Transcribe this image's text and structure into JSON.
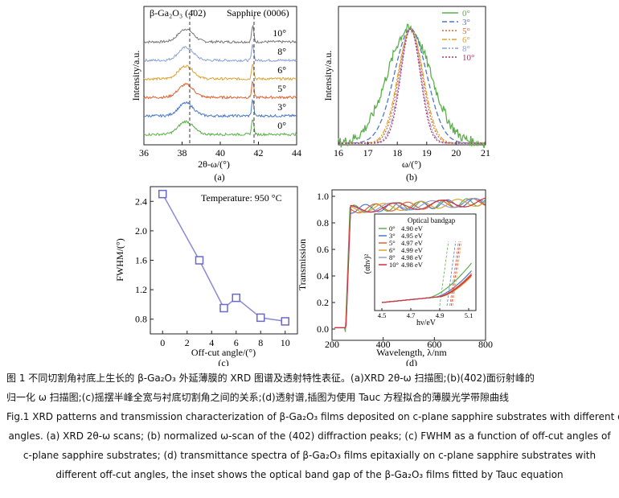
{
  "panels": {
    "a": {
      "label": "(a)",
      "title_left": "β-Ga₂O₃ (4̄02)",
      "title_right": "Sapphire (0006)",
      "ylabel": "Intensity/a.u.",
      "xlabel": "2θ-ω/(°)",
      "xticks": [
        "36",
        "38",
        "40",
        "42",
        "44"
      ],
      "xlim": [
        36,
        44
      ],
      "curves": [
        {
          "name": "10°",
          "color": "#777777"
        },
        {
          "name": "8°",
          "color": "#8aa0d8"
        },
        {
          "name": "6°",
          "color": "#e0a030"
        },
        {
          "name": "5°",
          "color": "#e06030"
        },
        {
          "name": "3°",
          "color": "#4a78c8"
        },
        {
          "name": "0°",
          "color": "#5cb04c"
        }
      ]
    },
    "b": {
      "label": "(b)",
      "ylabel": "Intensity/a.u.",
      "xlabel": "ω/(°)",
      "xticks": [
        "16",
        "17",
        "18",
        "19",
        "20",
        "21"
      ],
      "xlim": [
        16,
        21
      ],
      "legend": [
        {
          "name": "0°",
          "color": "#5cb04c",
          "dash": ""
        },
        {
          "name": "3°",
          "color": "#4a78c8",
          "dash": "6,3"
        },
        {
          "name": "5°",
          "color": "#e06030",
          "dash": "2,2"
        },
        {
          "name": "6°",
          "color": "#e0a030",
          "dash": "6,2,2,2"
        },
        {
          "name": "8°",
          "color": "#8aa0d8",
          "dash": "6,2,2,2,2,2"
        },
        {
          "name": "10°",
          "color": "#c03060",
          "dash": "2,2"
        }
      ]
    },
    "c": {
      "label": "(c)",
      "annotation": "Temperature: 950 °C",
      "ylabel": "FWHM/(°)",
      "xlabel": "Off-cut angle/(°)",
      "xticks": [
        "0",
        "2",
        "4",
        "6",
        "8",
        "10"
      ],
      "yticks": [
        "0.8",
        "1.2",
        "1.6",
        "2.0",
        "2.4"
      ]
    },
    "d": {
      "label": "(d)",
      "ylabel": "Transmission",
      "xlabel": "Wavelength, λ/nm",
      "xticks": [
        "200",
        "400",
        "600",
        "800"
      ],
      "yticks": [
        "0.0",
        "0.2",
        "0.4",
        "0.6",
        "0.8",
        "1.0"
      ],
      "inset": {
        "title": "Optical bandgap",
        "ylabel": "(αhν)²",
        "xlabel": "hν/eV",
        "xticks": [
          "4.5",
          "4.7",
          "4.9",
          "5.1"
        ],
        "entries": [
          {
            "angle": "0°",
            "value": "4.90 eV",
            "color": "#5cb04c"
          },
          {
            "angle": "3°",
            "value": "4.95 eV",
            "color": "#4a78c8"
          },
          {
            "angle": "5°",
            "value": "4.97 eV",
            "color": "#e06030"
          },
          {
            "angle": "6°",
            "value": "4.99 eV",
            "color": "#e0a030"
          },
          {
            "angle": "8°",
            "value": "4.98 eV",
            "color": "#8aa0d8"
          },
          {
            "angle": "10°",
            "value": "4.98 eV",
            "color": "#d03040"
          }
        ]
      }
    }
  },
  "chart_data": [
    {
      "type": "line",
      "title": "(a) XRD 2θ-ω scans",
      "xlabel": "2θ-ω/(°)",
      "ylabel": "Intensity/a.u.",
      "xlim": [
        36,
        44
      ],
      "series": [
        {
          "name": "0°"
        },
        {
          "name": "3°"
        },
        {
          "name": "5°"
        },
        {
          "name": "6°"
        },
        {
          "name": "8°"
        },
        {
          "name": "10°"
        }
      ],
      "peaks": {
        "Ga2O3_402": 38.2,
        "sapphire_0006": 41.7
      }
    },
    {
      "type": "line",
      "title": "(b) normalized ω-scan",
      "xlabel": "ω/(°)",
      "ylabel": "Intensity/a.u.",
      "xlim": [
        16,
        21
      ],
      "series": [
        {
          "name": "0°",
          "center": 18.4,
          "sigma": 1.05
        },
        {
          "name": "3°",
          "center": 18.45,
          "sigma": 0.78
        },
        {
          "name": "5°",
          "center": 18.45,
          "sigma": 0.56
        },
        {
          "name": "6°",
          "center": 18.45,
          "sigma": 0.6
        },
        {
          "name": "8°",
          "center": 18.45,
          "sigma": 0.5
        },
        {
          "name": "10°",
          "center": 18.45,
          "sigma": 0.47
        }
      ]
    },
    {
      "type": "scatter",
      "title": "(c) FWHM vs off-cut angle",
      "xlabel": "Off-cut angle/(°)",
      "ylabel": "FWHM/(°)",
      "xlim": [
        -1,
        11
      ],
      "ylim": [
        0.6,
        2.6
      ],
      "x": [
        0,
        3,
        5,
        6,
        8,
        10
      ],
      "y": [
        2.5,
        1.6,
        0.95,
        1.09,
        0.82,
        0.77
      ]
    },
    {
      "type": "line",
      "title": "(d) Transmittance spectra",
      "xlabel": "Wavelength, λ/nm",
      "ylabel": "Transmission",
      "xlim": [
        200,
        800
      ],
      "ylim": [
        0,
        1.0
      ],
      "series": [
        {
          "name": "0°",
          "edge": 252
        },
        {
          "name": "3°",
          "edge": 253
        },
        {
          "name": "5°",
          "edge": 254
        },
        {
          "name": "6°",
          "edge": 254
        },
        {
          "name": "8°",
          "edge": 255
        },
        {
          "name": "10°",
          "edge": 255
        }
      ],
      "inset_bandgap_eV": {
        "0°": 4.9,
        "3°": 4.95,
        "5°": 4.97,
        "6°": 4.99,
        "8°": 4.98,
        "10°": 4.98
      }
    }
  ],
  "caption": {
    "cn_line1": "图 1   不同切割角衬底上生长的 β-Ga₂O₃ 外延薄膜的 XRD 图谱及透射特性表征。(a)XRD 2θ-ω 扫描图;(b)(4̄02)面衍射峰的",
    "cn_line2": "归一化 ω 扫描图;(c)摇摆半峰全宽与衬底切割角之间的关系;(d)透射谱,插图为使用 Tauc 方程拟合的薄膜光学带隙曲线",
    "en_line1": "Fig.1   XRD patterns and transmission characterization of β-Ga₂O₃ films deposited on c-plane sapphire substrates with different off-cut",
    "en_line2": "angles. (a) XRD 2θ-ω scans; (b) normalized ω-scan of the (402) diffraction peaks; (c) FWHM as a function of off-cut angles of",
    "en_line3": "c-plane sapphire substrates; (d) transmittance spectra of β-Ga₂O₃ films epitaxially on c-plane sapphire substrates with",
    "en_line4": "different off-cut angles, the inset shows the optical band gap of the β-Ga₂O₃ films fitted by Tauc equation"
  }
}
